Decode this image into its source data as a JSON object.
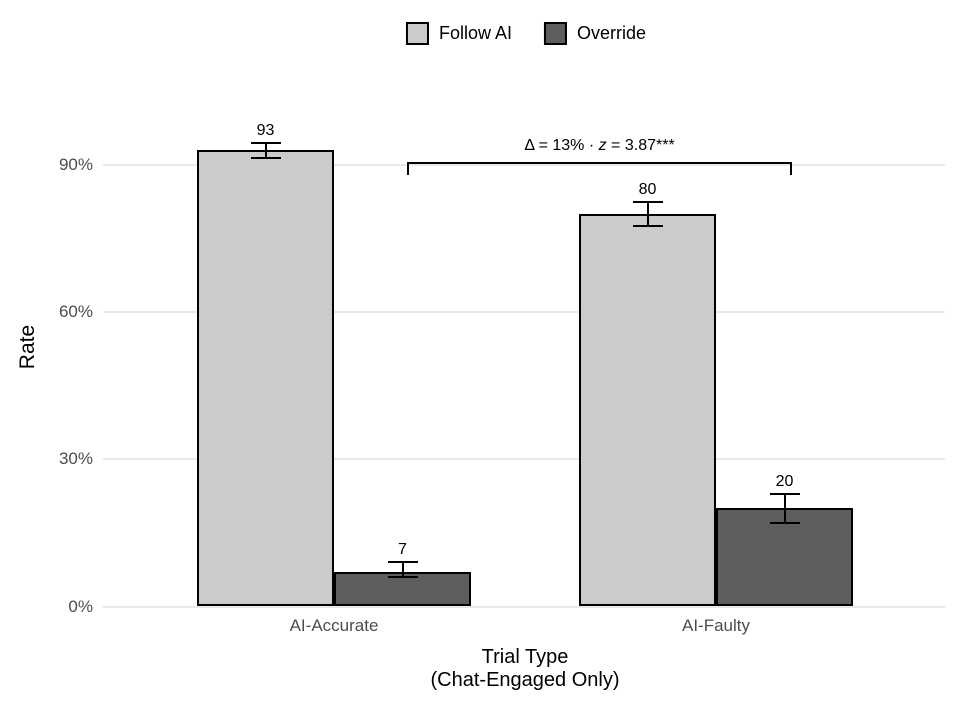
{
  "chart_data": {
    "type": "bar",
    "title": "",
    "categories": [
      "AI-Accurate",
      "AI-Faulty"
    ],
    "series": [
      {
        "name": "Follow AI",
        "color": "#cbcbcb",
        "values": [
          93,
          80
        ],
        "error_low": [
          91.5,
          77.5
        ],
        "error_high": [
          94.5,
          82.5
        ],
        "value_labels": [
          "93",
          "80"
        ]
      },
      {
        "name": "Override",
        "color": "#5e5e5e",
        "values": [
          7,
          20
        ],
        "error_low": [
          6,
          17
        ],
        "error_high": [
          9,
          23
        ],
        "value_labels": [
          "7",
          "20"
        ]
      }
    ],
    "xlabel_lines": [
      "Trial Type",
      "(Chat-Engaged Only)"
    ],
    "ylabel": "Rate",
    "y_ticks": [
      {
        "label": "0%",
        "value": 0
      },
      {
        "label": "30%",
        "value": 30
      },
      {
        "label": "60%",
        "value": 60
      },
      {
        "label": "90%",
        "value": 90
      }
    ],
    "ylim": [
      0,
      100
    ],
    "grid": "horizontal-major-only",
    "legend_position": "top-center",
    "annotation": {
      "full": "Δ = 13% · z = 3.87***",
      "pre": "Δ = 13% · ",
      "z": "z",
      "post": " = 3.87***"
    }
  },
  "colors": {
    "background": "#ffffff",
    "grid": "#e8e8e8",
    "tick_label": "#4d4d4d",
    "bar_border": "#000000",
    "follow_ai_fill": "#cbcbcb",
    "override_fill": "#5e5e5e"
  }
}
